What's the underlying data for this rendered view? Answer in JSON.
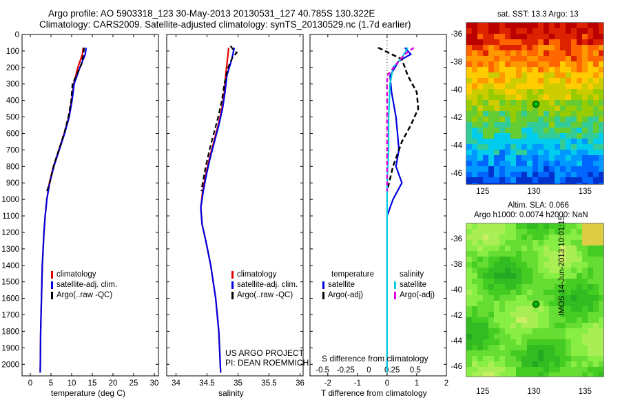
{
  "header": {
    "line1": "Argo profile: AO 5903318_123 30-May-2013 20130531_127 40.785S 130.322E",
    "line2": "Climatology: CARS2009. Satellite-adjusted climatology: synTS_20130529.nc (1.7d earlier)"
  },
  "colors": {
    "climatology": "#e00000",
    "satellite": "#0000e0",
    "argo": "#000000",
    "sat_salinity": "#00d0e0",
    "argo_salinity": "#e000e0"
  },
  "panels": {
    "depth_ticks": [
      "0",
      "100",
      "200",
      "300",
      "400",
      "500",
      "600",
      "700",
      "800",
      "900",
      "1000",
      "1100",
      "1200",
      "1300",
      "1400",
      "1500",
      "1600",
      "1700",
      "1800",
      "1900",
      "2000"
    ],
    "temperature": {
      "xlabel": "temperature (deg C)",
      "ticks": [
        "0",
        "5",
        "10",
        "15",
        "20",
        "25",
        "30"
      ],
      "legend": [
        "climatology",
        "satellite-adj. clim.",
        "Argo(..raw -QC)"
      ]
    },
    "salinity": {
      "xlabel": "salinity",
      "ticks": [
        "34",
        "34.5",
        "35",
        "35.5",
        "36"
      ],
      "legend": [
        "climatology",
        "satellite-adj. clim.",
        "Argo(..raw -QC)"
      ],
      "credit1": "US ARGO PROJECT",
      "credit2": "PI: DEAN ROEMMICH"
    },
    "difference": {
      "xlabel": "T difference from climatology",
      "top_label": "S difference from climatology",
      "t_ticks": [
        "-2",
        "-1",
        "0",
        "1",
        "2"
      ],
      "s_ticks": [
        "-0.5",
        "-0.25",
        "0",
        "0.25",
        "0.5"
      ],
      "legend_left_title": "temperature",
      "legend_right_title": "salinity",
      "legend_left": [
        "satellite",
        "Argo(-adj)"
      ],
      "legend_right": [
        "satellite",
        "Argo(-adj)"
      ]
    }
  },
  "maps": {
    "sst_title": "sat. SST: 13.3 Argo: 13",
    "sla_title1": "Altim. SLA: 0.066",
    "sla_title2": "Argo h1000: 0.0074 h2000: NaN",
    "lat_ticks": [
      "-36",
      "-38",
      "-40",
      "-42",
      "-44",
      "-46"
    ],
    "lon_ticks": [
      "125",
      "130",
      "135"
    ],
    "timestamp": "IMOS 14-Jun-2013 10:01:15"
  },
  "chart_data": [
    {
      "type": "line",
      "title": "",
      "xlabel": "temperature (deg C)",
      "ylabel": "",
      "xlim": [
        -2,
        31
      ],
      "ylim": [
        2070,
        0
      ],
      "series": [
        {
          "name": "climatology",
          "x": [
            12.8,
            12.6,
            11.5,
            10.5,
            10.0,
            9.3,
            8.2,
            6.9,
            5.6,
            4.6,
            4.0,
            3.6,
            3.3,
            3.1,
            2.9,
            2.7,
            2.5,
            2.4
          ],
          "y": [
            80,
            120,
            200,
            300,
            400,
            500,
            600,
            700,
            800,
            900,
            1000,
            1100,
            1200,
            1300,
            1400,
            1600,
            1800,
            2050
          ]
        },
        {
          "name": "satellite-adj. clim.",
          "x": [
            13.5,
            13.3,
            12.0,
            10.6,
            10.1,
            9.4,
            8.3,
            7.0,
            5.7,
            4.7,
            4.0,
            3.6,
            3.3,
            3.1,
            2.9,
            2.7,
            2.5,
            2.4
          ],
          "y": [
            80,
            120,
            200,
            300,
            400,
            500,
            600,
            700,
            800,
            900,
            1000,
            1100,
            1200,
            1300,
            1400,
            1600,
            1800,
            2050
          ]
        },
        {
          "name": "Argo(..raw -QC)",
          "x": [
            13.0,
            12.9,
            12.4,
            10.2,
            9.9,
            9.2,
            8.2,
            6.9,
            5.6,
            4.7,
            4.0
          ],
          "y": [
            80,
            110,
            180,
            300,
            400,
            500,
            600,
            700,
            800,
            900,
            950
          ]
        }
      ]
    },
    {
      "type": "line",
      "title": "",
      "xlabel": "salinity",
      "ylabel": "",
      "xlim": [
        33.85,
        36.05
      ],
      "ylim": [
        2070,
        0
      ],
      "series": [
        {
          "name": "climatology",
          "x": [
            34.85,
            34.83,
            34.8,
            34.78,
            34.74,
            34.68,
            34.61,
            34.54,
            34.48,
            34.43,
            34.4,
            34.42,
            34.48,
            34.56,
            34.64,
            34.69,
            34.72
          ],
          "y": [
            80,
            150,
            250,
            350,
            450,
            550,
            650,
            750,
            850,
            950,
            1050,
            1150,
            1250,
            1400,
            1600,
            1800,
            2050
          ]
        },
        {
          "name": "satellite-adj. clim.",
          "x": [
            34.94,
            34.9,
            34.82,
            34.79,
            34.75,
            34.69,
            34.62,
            34.55,
            34.49,
            34.44,
            34.4,
            34.42,
            34.48,
            34.56,
            34.64,
            34.69,
            34.72
          ],
          "y": [
            80,
            150,
            250,
            350,
            450,
            550,
            650,
            750,
            850,
            950,
            1050,
            1150,
            1250,
            1400,
            1600,
            1800,
            2050
          ]
        },
        {
          "name": "Argo(..raw -QC)",
          "x": [
            34.88,
            34.92,
            34.98,
            34.91,
            34.84,
            34.78,
            34.74,
            34.68,
            34.61,
            34.54,
            34.48,
            34.43,
            34.41
          ],
          "y": [
            70,
            90,
            110,
            140,
            200,
            300,
            400,
            500,
            600,
            700,
            800,
            900,
            950
          ]
        }
      ]
    },
    {
      "type": "line",
      "title": "",
      "xlabel": "T difference from climatology",
      "ylabel": "",
      "xlim": [
        -2.6,
        2.0
      ],
      "ylim": [
        2070,
        0
      ],
      "series": [
        {
          "name": "temperature satellite",
          "x": [
            0.6,
            0.8,
            0.4,
            0.1,
            0.15,
            0.3,
            0.35,
            0.4,
            0.3,
            0.5,
            0.2,
            0.0,
            0.0,
            0.0
          ],
          "y": [
            80,
            120,
            160,
            250,
            350,
            500,
            600,
            700,
            800,
            900,
            1000,
            1100,
            1500,
            2050
          ]
        },
        {
          "name": "temperature Argo(-adj)",
          "x": [
            -0.3,
            0.5,
            0.7,
            1.0,
            1.05,
            0.8,
            0.5,
            0.2,
            0.0
          ],
          "y": [
            80,
            150,
            250,
            350,
            450,
            550,
            650,
            800,
            950
          ]
        },
        {
          "name": "salinity satellite",
          "x": [
            0.7,
            0.5,
            0.2,
            0.1,
            0.05,
            0.05,
            0.0,
            0.0,
            0.0
          ],
          "y": [
            80,
            140,
            200,
            300,
            500,
            700,
            900,
            1200,
            2050
          ]
        },
        {
          "name": "salinity Argo(-adj)",
          "x": [
            0.9,
            0.6,
            0.4,
            0.0,
            0.0
          ],
          "y": [
            80,
            120,
            160,
            250,
            950
          ]
        }
      ]
    }
  ]
}
